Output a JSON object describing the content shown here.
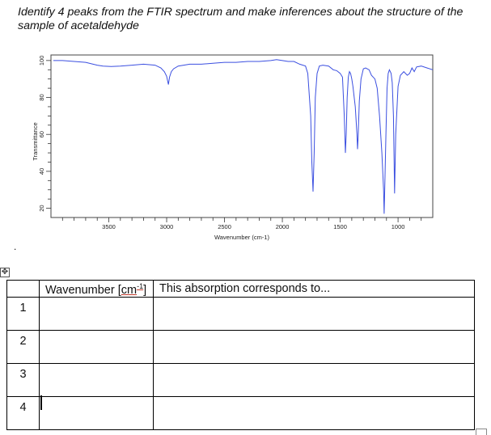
{
  "question": {
    "text": "Identify 4 peaks from the FTIR spectrum and make inferences about the structure of the sample of acetaldehyde"
  },
  "chart_data": {
    "type": "line",
    "title": "",
    "xlabel": "Wavenumber (cm-1)",
    "ylabel": "Transmittance",
    "xlim": [
      4000,
      700
    ],
    "ylim": [
      15,
      103
    ],
    "x_inverted": true,
    "grid": false,
    "x_ticks": [
      3500,
      3000,
      2500,
      2000,
      1500,
      1000
    ],
    "y_ticks": [
      20,
      40,
      60,
      80,
      100
    ],
    "line_color": "#3b4fe0",
    "series": [
      {
        "x": [
          3980,
          3900,
          3800,
          3700,
          3600,
          3550,
          3480,
          3400,
          3300,
          3200,
          3100,
          3050,
          3020,
          3000,
          2985,
          2975,
          2960,
          2940,
          2900,
          2800,
          2700,
          2600,
          2500,
          2400,
          2300,
          2200,
          2100,
          2050,
          2000,
          1950,
          1900,
          1850,
          1800,
          1780,
          1755,
          1745,
          1735,
          1725,
          1715,
          1700,
          1680,
          1650,
          1600,
          1560,
          1530,
          1500,
          1480,
          1465,
          1455,
          1448,
          1440,
          1430,
          1420,
          1410,
          1400,
          1390,
          1370,
          1355,
          1350,
          1345,
          1335,
          1320,
          1300,
          1280,
          1250,
          1230,
          1200,
          1180,
          1160,
          1140,
          1125,
          1120,
          1115,
          1105,
          1095,
          1085,
          1075,
          1060,
          1050,
          1040,
          1030,
          1020,
          1000,
          980,
          950,
          920,
          900,
          880,
          860,
          840,
          800,
          750,
          700
        ],
        "y": [
          100,
          100,
          99.5,
          99,
          97.5,
          97,
          96.8,
          97,
          97.5,
          98,
          97.5,
          96,
          94,
          91.5,
          87,
          91,
          94,
          95.5,
          97,
          98,
          98,
          98.5,
          99,
          99,
          99.5,
          99.5,
          100,
          100.5,
          100,
          99.5,
          99.5,
          98,
          97,
          93,
          70,
          45,
          29,
          50,
          80,
          93,
          97,
          97.5,
          97,
          95,
          94.5,
          93,
          91,
          70,
          50,
          60,
          80,
          91,
          94,
          93,
          90,
          86,
          75,
          60,
          52,
          58,
          78,
          90,
          95.5,
          96,
          95,
          92,
          90,
          85,
          70,
          50,
          30,
          17,
          30,
          60,
          85,
          93,
          95,
          93,
          88,
          70,
          28,
          60,
          86,
          92,
          94,
          92,
          93,
          96,
          94,
          96.5,
          97,
          96,
          95
        ]
      }
    ]
  },
  "table": {
    "header_number": "",
    "header_wavenumber_pre": "Wavenumber [",
    "header_wavenumber_unit": "cm",
    "header_wavenumber_exp": "-1",
    "header_wavenumber_post": "]",
    "header_inference": "This absorption corresponds to...",
    "rows": [
      {
        "num": "1",
        "wavenumber": "",
        "inference": ""
      },
      {
        "num": "2",
        "wavenumber": "",
        "inference": ""
      },
      {
        "num": "3",
        "wavenumber": "",
        "inference": ""
      },
      {
        "num": "4",
        "wavenumber": "",
        "inference": ""
      }
    ]
  },
  "icons": {
    "move_handle": "move-arrows-icon",
    "resize_handle": "resize-handle-icon"
  },
  "stray_mark": "."
}
